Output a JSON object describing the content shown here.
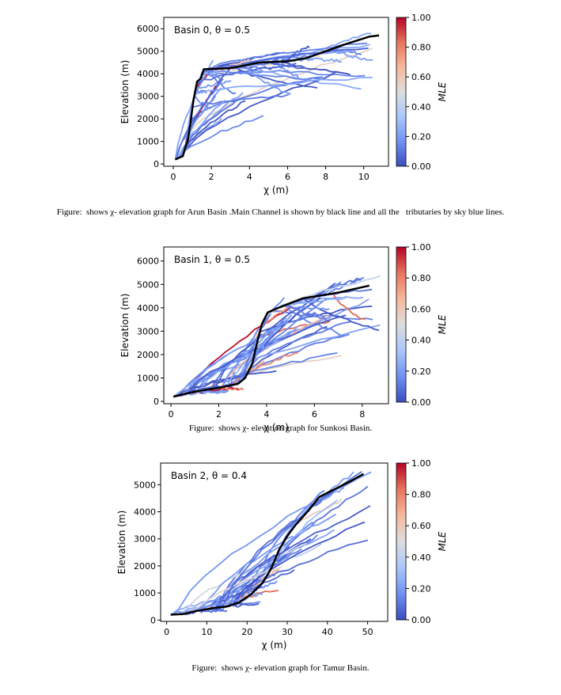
{
  "chart_data": [
    {
      "type": "line",
      "annotation": "Basin 0, θ = 0.5",
      "xlabel": "χ (m)",
      "ylabel": "Elevation (m)",
      "xlim": [
        -0.5,
        11.3
      ],
      "ylim": [
        -100,
        6500
      ],
      "xticks": [
        0,
        2,
        4,
        6,
        8,
        10
      ],
      "yticks": [
        0,
        1000,
        2000,
        3000,
        4000,
        5000,
        6000
      ],
      "colorbar": {
        "label": "MLE",
        "ticks": [
          "0.00",
          "0.20",
          "0.40",
          "0.60",
          "0.80",
          "1.00"
        ]
      },
      "main_channel": [
        [
          0.1,
          200
        ],
        [
          0.5,
          350
        ],
        [
          0.65,
          800
        ],
        [
          0.75,
          1000
        ],
        [
          0.9,
          1800
        ],
        [
          1.05,
          2800
        ],
        [
          1.25,
          3650
        ],
        [
          1.45,
          3800
        ],
        [
          1.6,
          4200
        ],
        [
          3,
          4250
        ],
        [
          4.5,
          4500
        ],
        [
          6,
          4550
        ],
        [
          7,
          4700
        ],
        [
          8,
          5000
        ],
        [
          9,
          5300
        ],
        [
          10.3,
          5650
        ],
        [
          10.8,
          5700
        ]
      ],
      "tributary_stats": {
        "count": 60,
        "chi_range": [
          0.8,
          10.5
        ],
        "elevation_range": [
          0,
          6300
        ]
      },
      "caption": "Figure:  shows χ- elevation graph for Arun Basin .Main Channel is shown by black line and all the   tributaries by sky blue lines."
    },
    {
      "type": "line",
      "annotation": "Basin 1, θ = 0.5",
      "xlabel": "χ (m)",
      "ylabel": "Elevation (m)",
      "xlim": [
        -0.3,
        9.1
      ],
      "ylim": [
        -100,
        6600
      ],
      "xticks": [
        0,
        2,
        4,
        6,
        8
      ],
      "yticks": [
        0,
        1000,
        2000,
        3000,
        4000,
        5000,
        6000
      ],
      "colorbar": {
        "label": "MLE",
        "ticks": [
          "0.00",
          "0.20",
          "0.40",
          "0.60",
          "0.80",
          "1.00"
        ]
      },
      "main_channel": [
        [
          0.1,
          200
        ],
        [
          0.5,
          300
        ],
        [
          1,
          420
        ],
        [
          2,
          580
        ],
        [
          2.8,
          750
        ],
        [
          3.1,
          1000
        ],
        [
          3.4,
          1600
        ],
        [
          3.6,
          2500
        ],
        [
          3.8,
          3300
        ],
        [
          4.05,
          3800
        ],
        [
          4.5,
          4000
        ],
        [
          5.5,
          4400
        ],
        [
          7,
          4650
        ],
        [
          8.3,
          4950
        ]
      ],
      "tributary_stats": {
        "count": 60,
        "chi_range": [
          2,
          8.8
        ],
        "elevation_range": [
          0,
          6200
        ]
      },
      "caption": "Figure:  shows χ- elevation graph for Sunkosi Basin."
    },
    {
      "type": "line",
      "annotation": "Basin 2, θ = 0.4",
      "xlabel": "χ (m)",
      "ylabel": "Elevation (m)",
      "xlim": [
        -1.5,
        55
      ],
      "ylim": [
        -50,
        5800
      ],
      "xticks": [
        0,
        10,
        20,
        30,
        40,
        50
      ],
      "yticks": [
        0,
        1000,
        2000,
        3000,
        4000,
        5000
      ],
      "colorbar": {
        "label": "MLE",
        "ticks": [
          "0.00",
          "0.20",
          "0.40",
          "0.60",
          "0.80",
          "1.00"
        ]
      },
      "main_channel": [
        [
          1,
          200
        ],
        [
          4,
          220
        ],
        [
          8,
          350
        ],
        [
          12,
          450
        ],
        [
          15,
          500
        ],
        [
          18,
          650
        ],
        [
          21,
          950
        ],
        [
          24,
          1400
        ],
        [
          26,
          1900
        ],
        [
          28,
          2600
        ],
        [
          30,
          3100
        ],
        [
          32,
          3500
        ],
        [
          35,
          4000
        ],
        [
          38,
          4550
        ],
        [
          42,
          4850
        ],
        [
          46,
          5150
        ],
        [
          49,
          5400
        ]
      ],
      "tributary_stats": {
        "count": 45,
        "chi_range": [
          12,
          52
        ],
        "elevation_range": [
          0,
          5500
        ]
      },
      "caption": "Figure:  shows χ- elevation graph for Tamur Basin."
    }
  ],
  "colors": {
    "main_channel": "#000000",
    "colormap": [
      "#3b4cc0",
      "#6f92f3",
      "#aac7fd",
      "#dddddd",
      "#f7b89c",
      "#e7745b",
      "#b40426"
    ]
  }
}
